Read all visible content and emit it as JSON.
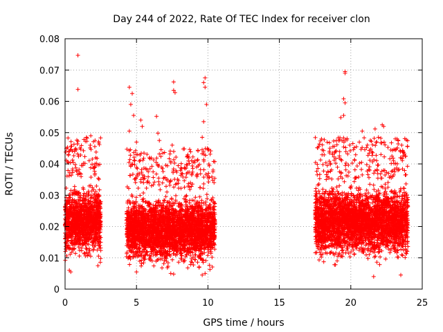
{
  "chart_data": {
    "type": "scatter",
    "title": "Day 244 of 2022, Rate Of TEC Index for receiver clon",
    "xlabel": "GPS time / hours",
    "ylabel": "ROTI / TECUs",
    "xlim": [
      0,
      25
    ],
    "ylim": [
      0,
      0.08
    ],
    "x_ticks": [
      0,
      5,
      10,
      15,
      20,
      25
    ],
    "x_tick_labels": [
      "0",
      "5",
      "10",
      "15",
      "20",
      "25"
    ],
    "y_ticks": [
      0,
      0.01,
      0.02,
      0.03,
      0.04,
      0.05,
      0.06,
      0.07,
      0.08
    ],
    "y_tick_labels": [
      "0",
      "0.01",
      "0.02",
      "0.03",
      "0.04",
      "0.05",
      "0.06",
      "0.07",
      "0.08"
    ],
    "grid": true,
    "marker": "+",
    "color": "#ff0000",
    "series": [
      {
        "name": "ROTI",
        "segments": [
          {
            "x_range": [
              0.0,
              2.5
            ],
            "typical_range": [
              0.008,
              0.035
            ]
          },
          {
            "x_range": [
              4.3,
              10.5
            ],
            "typical_range": [
              0.006,
              0.032
            ]
          },
          {
            "x_range": [
              17.5,
              24.0
            ],
            "typical_range": [
              0.008,
              0.035
            ]
          }
        ],
        "points": [
          [
            0.9,
            0.0747
          ],
          [
            0.9,
            0.0638
          ],
          [
            1.5,
            0.0485
          ],
          [
            1.8,
            0.049
          ],
          [
            2.1,
            0.0475
          ],
          [
            4.5,
            0.0645
          ],
          [
            4.7,
            0.0625
          ],
          [
            4.6,
            0.059
          ],
          [
            4.8,
            0.0555
          ],
          [
            4.5,
            0.0505
          ],
          [
            5.3,
            0.054
          ],
          [
            5.4,
            0.052
          ],
          [
            5.0,
            0.047
          ],
          [
            6.4,
            0.0552
          ],
          [
            6.5,
            0.0498
          ],
          [
            6.6,
            0.0475
          ],
          [
            7.6,
            0.0662
          ],
          [
            7.6,
            0.0635
          ],
          [
            7.7,
            0.0628
          ],
          [
            7.5,
            0.046
          ],
          [
            9.8,
            0.0675
          ],
          [
            9.7,
            0.066
          ],
          [
            9.8,
            0.0645
          ],
          [
            9.9,
            0.059
          ],
          [
            9.7,
            0.0535
          ],
          [
            9.6,
            0.0485
          ],
          [
            10.0,
            0.0445
          ],
          [
            10.4,
            0.0408
          ],
          [
            0.3,
            0.006
          ],
          [
            0.4,
            0.0055
          ],
          [
            2.3,
            0.0075
          ],
          [
            5.0,
            0.0055
          ],
          [
            7.4,
            0.005
          ],
          [
            7.6,
            0.0048
          ],
          [
            9.6,
            0.0045
          ],
          [
            9.8,
            0.005
          ],
          [
            19.6,
            0.0695
          ],
          [
            19.6,
            0.069
          ],
          [
            19.5,
            0.0608
          ],
          [
            19.6,
            0.0595
          ],
          [
            19.5,
            0.0555
          ],
          [
            19.3,
            0.0548
          ],
          [
            20.8,
            0.0505
          ],
          [
            21.7,
            0.0512
          ],
          [
            22.2,
            0.0525
          ],
          [
            22.3,
            0.052
          ],
          [
            22.1,
            0.0482
          ],
          [
            18.0,
            0.0445
          ],
          [
            18.5,
            0.044
          ],
          [
            21.6,
            0.004
          ],
          [
            23.5,
            0.0045
          ]
        ]
      }
    ]
  }
}
